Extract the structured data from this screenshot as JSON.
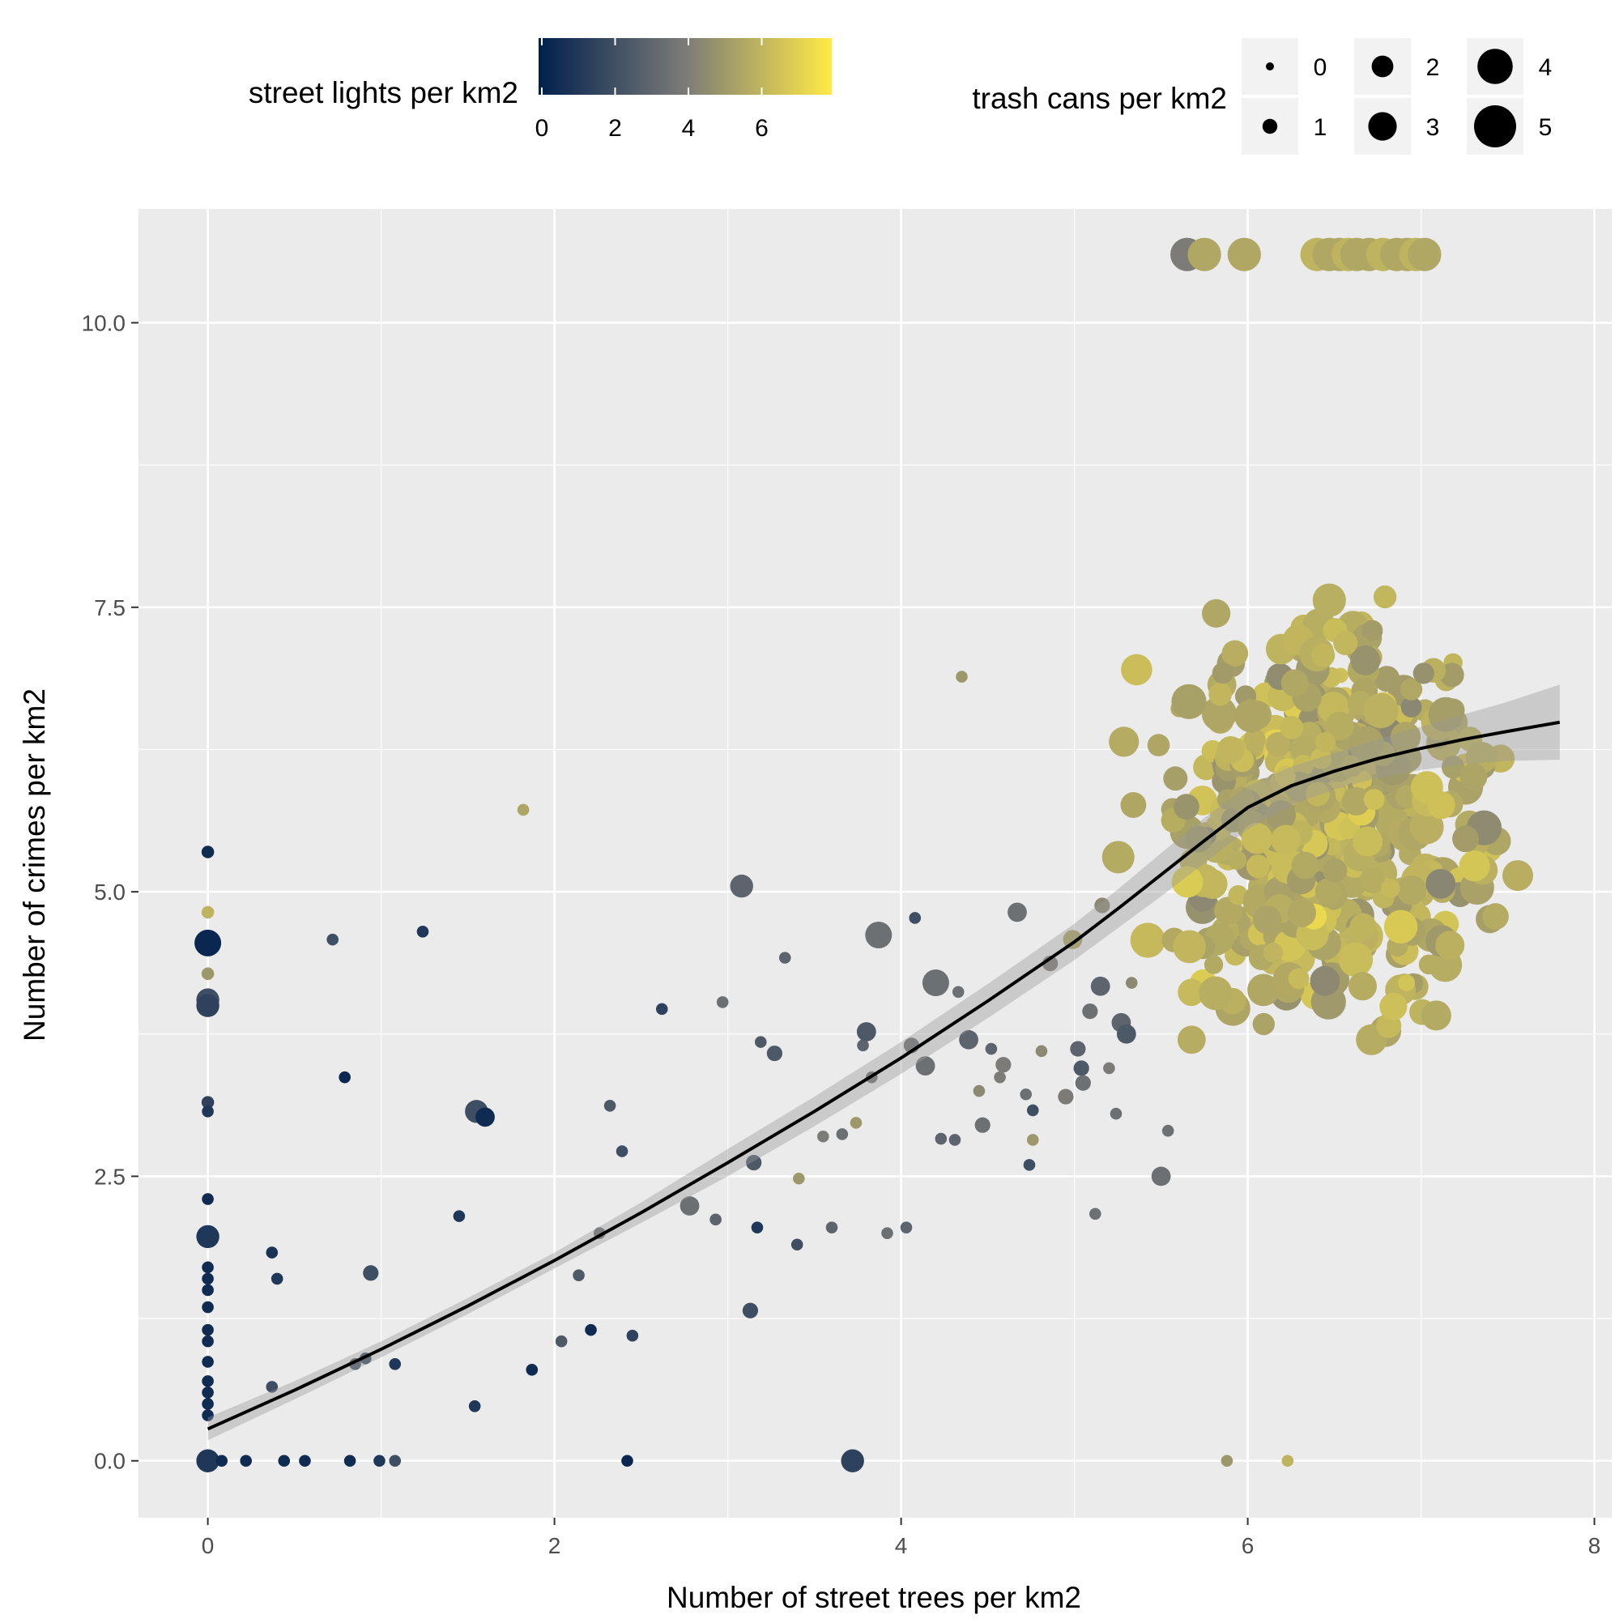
{
  "chart_data": {
    "type": "scatter",
    "xlabel": "Number of street trees per km2",
    "ylabel": "Number of crimes per km2",
    "xlim": [
      -0.4,
      8.1
    ],
    "ylim": [
      -0.5,
      11.0
    ],
    "x_ticks": [
      0,
      2,
      4,
      6,
      8
    ],
    "y_ticks": [
      0.0,
      2.5,
      5.0,
      7.5,
      10.0
    ],
    "x_tick_labels": [
      "0",
      "2",
      "4",
      "6",
      "8"
    ],
    "y_tick_labels": [
      "0.0",
      "2.5",
      "5.0",
      "7.5",
      "10.0"
    ],
    "grid": true,
    "legend_position": "top",
    "color_legend": {
      "title": "street lights per km2",
      "range": [
        0,
        8
      ],
      "ticks": [
        "0",
        "2",
        "4",
        "6"
      ],
      "low_color": "#00204D",
      "mid_color": "#7C7B78",
      "high_color": "#FFEA46"
    },
    "size_legend": {
      "title": "trash cans per km2",
      "levels": [
        "0",
        "1",
        "2",
        "3",
        "4",
        "5"
      ]
    },
    "smooth": {
      "color": "#000000",
      "band_color": "#999999",
      "x": [
        0,
        0.5,
        1,
        1.5,
        2,
        2.5,
        3,
        3.5,
        4,
        4.5,
        5,
        5.25,
        5.5,
        5.75,
        6,
        6.25,
        6.5,
        6.75,
        7,
        7.25,
        7.5,
        7.8
      ],
      "y": [
        0.28,
        0.62,
        0.98,
        1.36,
        1.76,
        2.18,
        2.62,
        3.07,
        3.54,
        4.04,
        4.56,
        4.85,
        5.15,
        5.45,
        5.74,
        5.93,
        6.06,
        6.17,
        6.26,
        6.34,
        6.41,
        6.49
      ],
      "ymin": [
        0.18,
        0.54,
        0.91,
        1.29,
        1.69,
        2.09,
        2.5,
        2.94,
        3.4,
        3.89,
        4.4,
        4.68,
        4.96,
        5.25,
        5.55,
        5.76,
        5.9,
        6.0,
        6.07,
        6.12,
        6.15,
        6.16
      ],
      "ymax": [
        0.38,
        0.7,
        1.05,
        1.43,
        1.83,
        2.27,
        2.74,
        3.2,
        3.68,
        4.19,
        4.72,
        5.02,
        5.34,
        5.65,
        5.93,
        6.1,
        6.22,
        6.34,
        6.45,
        6.56,
        6.67,
        6.82
      ]
    },
    "points": [
      [
        0,
        5.35,
        0.5,
        0.6
      ],
      [
        0,
        4.82,
        6.0,
        0.6
      ],
      [
        0,
        4.55,
        0.3,
        2.5
      ],
      [
        0,
        4.28,
        5.0,
        0.6
      ],
      [
        0,
        4.05,
        2.0,
        2.0
      ],
      [
        0,
        4.0,
        1.5,
        2.0
      ],
      [
        0,
        3.15,
        1.5,
        0.6
      ],
      [
        0,
        3.07,
        1.0,
        0.5
      ],
      [
        0,
        2.3,
        0.5,
        0.5
      ],
      [
        0,
        1.97,
        1.0,
        2.0
      ],
      [
        0,
        1.7,
        0.5,
        0.5
      ],
      [
        0,
        1.6,
        0.5,
        0.5
      ],
      [
        0,
        1.5,
        0.5,
        0.5
      ],
      [
        0,
        1.35,
        0.5,
        0.5
      ],
      [
        0,
        1.15,
        0.5,
        0.5
      ],
      [
        0,
        1.05,
        0.5,
        0.5
      ],
      [
        0,
        0.87,
        0.5,
        0.5
      ],
      [
        0,
        0.7,
        0.5,
        0.5
      ],
      [
        0,
        0.6,
        0.5,
        0.5
      ],
      [
        0,
        0.5,
        0.5,
        0.5
      ],
      [
        0,
        0.4,
        0.5,
        0.5
      ],
      [
        0,
        0.0,
        1.0,
        2.0
      ],
      [
        0.08,
        0.0,
        0.5,
        0.5
      ],
      [
        0.22,
        0.0,
        0.5,
        0.5
      ],
      [
        0.44,
        0.0,
        0.5,
        0.5
      ],
      [
        0.56,
        0.0,
        0.5,
        0.5
      ],
      [
        0.82,
        0.0,
        0.5,
        0.5
      ],
      [
        0.99,
        0.0,
        1.0,
        0.5
      ],
      [
        1.08,
        0.0,
        2.0,
        0.5
      ],
      [
        2.42,
        0.0,
        0.3,
        0.5
      ],
      [
        3.72,
        0.0,
        1.5,
        2.0
      ],
      [
        5.88,
        0.0,
        5.0,
        0.5
      ],
      [
        6.23,
        0.0,
        6.0,
        0.5
      ],
      [
        0.72,
        4.58,
        2.0,
        0.5
      ],
      [
        1.24,
        4.65,
        1.0,
        0.5
      ],
      [
        0.79,
        3.37,
        0.3,
        0.5
      ],
      [
        1.55,
        3.07,
        2.0,
        2.0
      ],
      [
        1.6,
        3.02,
        0.5,
        1.5
      ],
      [
        0.37,
        1.83,
        0.8,
        0.5
      ],
      [
        0.4,
        1.6,
        1.0,
        0.5
      ],
      [
        0.94,
        1.65,
        2.0,
        1.0
      ],
      [
        0.37,
        0.65,
        2.0,
        0.5
      ],
      [
        0.85,
        0.85,
        2.5,
        0.5
      ],
      [
        0.91,
        0.9,
        2.0,
        0.5
      ],
      [
        1.08,
        0.85,
        1.0,
        0.5
      ],
      [
        1.45,
        2.15,
        1.0,
        0.5
      ],
      [
        1.54,
        0.48,
        1.0,
        0.5
      ],
      [
        1.87,
        0.8,
        0.5,
        0.5
      ],
      [
        1.82,
        5.72,
        5.5,
        0.5
      ],
      [
        2.04,
        1.05,
        2.5,
        0.5
      ],
      [
        2.14,
        1.63,
        2.5,
        0.5
      ],
      [
        2.21,
        1.15,
        0.5,
        0.5
      ],
      [
        2.26,
        2.0,
        3.5,
        0.5
      ],
      [
        2.32,
        3.12,
        2.5,
        0.5
      ],
      [
        2.39,
        2.72,
        2.0,
        0.5
      ],
      [
        2.45,
        1.1,
        1.5,
        0.5
      ],
      [
        2.62,
        3.97,
        1.5,
        0.5
      ],
      [
        2.78,
        2.24,
        3.5,
        1.5
      ],
      [
        2.93,
        2.12,
        3.0,
        0.5
      ],
      [
        2.97,
        4.03,
        3.5,
        0.5
      ],
      [
        3.08,
        5.05,
        3.0,
        2.0
      ],
      [
        3.13,
        1.32,
        2.0,
        1.0
      ],
      [
        3.15,
        2.62,
        2.5,
        1.0
      ],
      [
        3.17,
        2.05,
        1.0,
        0.5
      ],
      [
        3.19,
        3.68,
        2.5,
        0.5
      ],
      [
        3.27,
        3.58,
        2.5,
        1.0
      ],
      [
        3.33,
        4.42,
        3.0,
        0.5
      ],
      [
        3.4,
        1.9,
        2.0,
        0.5
      ],
      [
        3.41,
        2.48,
        5.0,
        0.5
      ],
      [
        3.55,
        2.85,
        4.0,
        0.5
      ],
      [
        3.6,
        2.05,
        3.0,
        0.5
      ],
      [
        3.66,
        2.87,
        3.5,
        0.5
      ],
      [
        3.74,
        2.97,
        5.0,
        0.5
      ],
      [
        3.78,
        3.65,
        3.0,
        0.5
      ],
      [
        3.8,
        3.77,
        2.5,
        1.5
      ],
      [
        3.83,
        3.37,
        3.5,
        0.5
      ],
      [
        3.87,
        4.62,
        3.5,
        2.5
      ],
      [
        3.92,
        2.0,
        3.5,
        0.5
      ],
      [
        4.03,
        2.05,
        3.0,
        0.5
      ],
      [
        4.06,
        3.65,
        3.5,
        1.0
      ],
      [
        4.08,
        4.77,
        2.0,
        0.5
      ],
      [
        4.14,
        3.47,
        3.5,
        1.5
      ],
      [
        4.2,
        4.2,
        3.5,
        2.5
      ],
      [
        4.23,
        2.83,
        3.0,
        0.5
      ],
      [
        4.31,
        2.82,
        3.0,
        0.5
      ],
      [
        4.33,
        4.12,
        3.5,
        0.5
      ],
      [
        4.35,
        6.89,
        5.0,
        0.5
      ],
      [
        4.39,
        3.7,
        3.0,
        1.5
      ],
      [
        4.45,
        3.25,
        4.5,
        0.5
      ],
      [
        4.47,
        2.95,
        3.5,
        1.0
      ],
      [
        4.52,
        3.62,
        3.0,
        0.5
      ],
      [
        4.57,
        3.37,
        4.0,
        0.5
      ],
      [
        4.59,
        3.48,
        4.0,
        1.0
      ],
      [
        4.67,
        4.82,
        3.5,
        1.5
      ],
      [
        4.72,
        3.22,
        3.5,
        0.5
      ],
      [
        4.74,
        2.6,
        2.0,
        0.5
      ],
      [
        4.81,
        3.6,
        4.5,
        0.5
      ],
      [
        4.86,
        4.37,
        4.0,
        1.0
      ],
      [
        4.95,
        3.2,
        4.0,
        1.0
      ],
      [
        4.99,
        4.58,
        5.5,
        1.5
      ],
      [
        5.02,
        3.62,
        3.0,
        1.0
      ],
      [
        5.04,
        3.45,
        2.5,
        1.0
      ],
      [
        5.05,
        3.32,
        3.5,
        1.0
      ],
      [
        5.09,
        3.95,
        3.5,
        1.0
      ],
      [
        5.12,
        2.17,
        3.5,
        0.5
      ],
      [
        5.15,
        4.17,
        3.0,
        1.5
      ],
      [
        5.16,
        4.88,
        4.5,
        1.0
      ],
      [
        5.2,
        3.45,
        4.0,
        0.5
      ],
      [
        5.24,
        3.05,
        3.5,
        0.5
      ],
      [
        5.27,
        3.85,
        3.0,
        1.5
      ],
      [
        5.3,
        3.75,
        2.5,
        1.5
      ],
      [
        5.33,
        4.2,
        4.5,
        0.5
      ],
      [
        5.5,
        2.5,
        3.5,
        1.5
      ],
      [
        5.54,
        2.9,
        3.5,
        0.5
      ],
      [
        4.76,
        3.08,
        2.0,
        0.5
      ],
      [
        4.76,
        2.82,
        5.0,
        0.5
      ]
    ],
    "cloud": {
      "center": [
        6.45,
        5.55
      ],
      "spread": [
        0.55,
        1.1
      ],
      "count": 520,
      "color_mean": 5.8,
      "size_mean": 2.6
    },
    "top_row": {
      "y": 10.6,
      "x": [
        5.65,
        5.75,
        5.98,
        6.4,
        6.47,
        6.53,
        6.58,
        6.63,
        6.7,
        6.78,
        6.86,
        6.92,
        6.97,
        7.02
      ]
    }
  }
}
